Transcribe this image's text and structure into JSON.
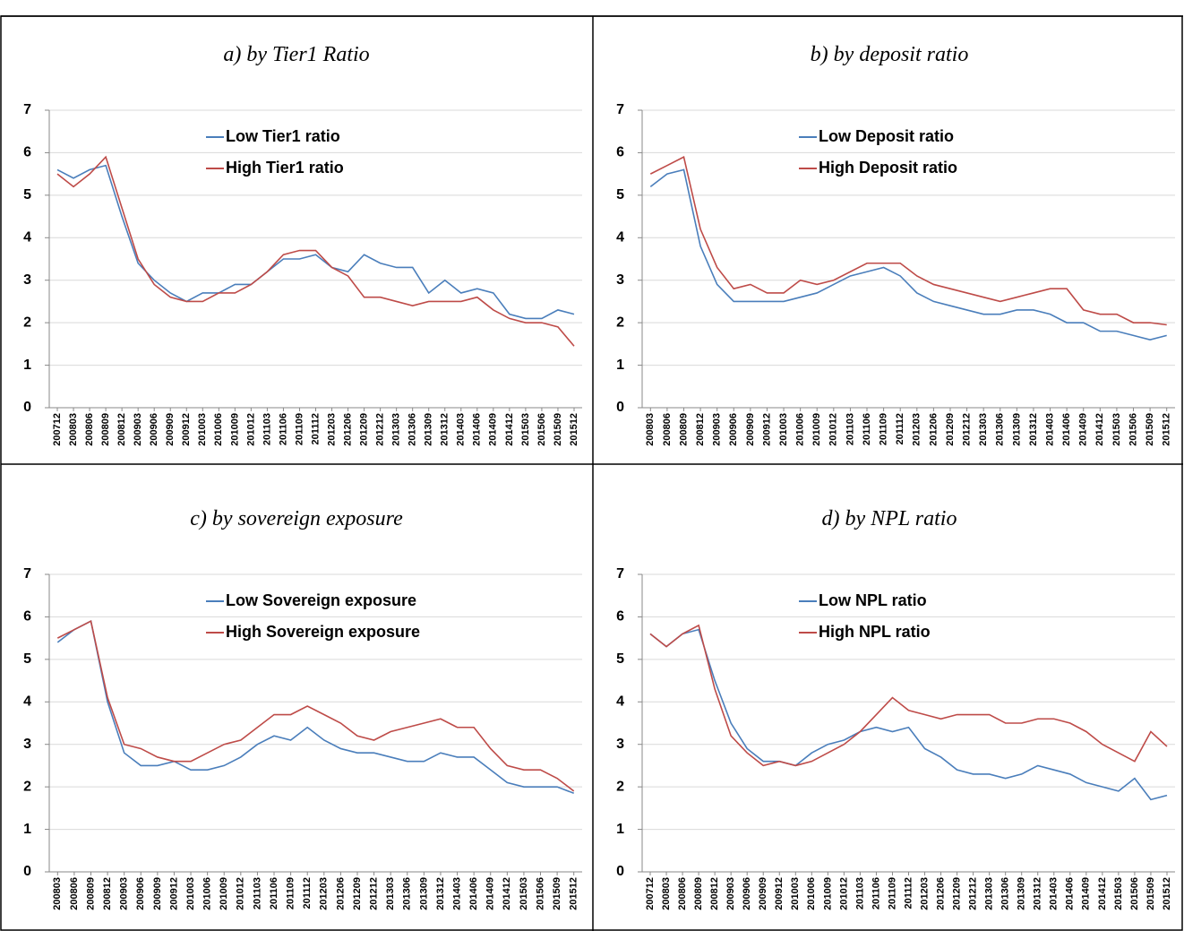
{
  "chart_data": [
    {
      "type": "line",
      "title": "a) by Tier1 Ratio",
      "categories": [
        "200712",
        "200803",
        "200806",
        "200809",
        "200812",
        "200903",
        "200906",
        "200909",
        "200912",
        "201003",
        "201006",
        "201009",
        "201012",
        "201103",
        "201106",
        "201109",
        "201112",
        "201203",
        "201206",
        "201209",
        "201212",
        "201303",
        "201306",
        "201309",
        "201312",
        "201403",
        "201406",
        "201409",
        "201412",
        "201503",
        "201506",
        "201509",
        "201512"
      ],
      "series": [
        {
          "name": "Low Tier1 ratio",
          "color": "#4a7ebb",
          "values": [
            5.6,
            5.4,
            5.6,
            5.7,
            4.5,
            3.4,
            3.0,
            2.7,
            2.5,
            2.7,
            2.7,
            2.9,
            2.9,
            3.2,
            3.5,
            3.5,
            3.6,
            3.3,
            3.2,
            3.6,
            3.4,
            3.3,
            3.3,
            2.7,
            3.0,
            2.7,
            2.8,
            2.7,
            2.2,
            2.1,
            2.1,
            2.3,
            2.2
          ]
        },
        {
          "name": "High Tier1 ratio",
          "color": "#be4b48",
          "values": [
            5.5,
            5.2,
            5.5,
            5.9,
            4.7,
            3.5,
            2.9,
            2.6,
            2.5,
            2.5,
            2.7,
            2.7,
            2.9,
            3.2,
            3.6,
            3.7,
            3.7,
            3.3,
            3.1,
            2.6,
            2.6,
            2.5,
            2.4,
            2.5,
            2.5,
            2.5,
            2.6,
            2.3,
            2.1,
            2.0,
            2.0,
            1.9,
            1.45
          ]
        }
      ],
      "ylim": [
        0,
        7
      ],
      "yticks": [
        0,
        1,
        2,
        3,
        4,
        5,
        6,
        7
      ],
      "grid": true
    },
    {
      "type": "line",
      "title": "b) by deposit ratio",
      "categories": [
        "200803",
        "200806",
        "200809",
        "200812",
        "200903",
        "200906",
        "200909",
        "200912",
        "201003",
        "201006",
        "201009",
        "201012",
        "201103",
        "201106",
        "201109",
        "201112",
        "201203",
        "201206",
        "201209",
        "201212",
        "201303",
        "201306",
        "201309",
        "201312",
        "201403",
        "201406",
        "201409",
        "201412",
        "201503",
        "201506",
        "201509",
        "201512"
      ],
      "series": [
        {
          "name": "Low Deposit ratio",
          "color": "#4a7ebb",
          "values": [
            5.2,
            5.5,
            5.6,
            3.8,
            2.9,
            2.5,
            2.5,
            2.5,
            2.5,
            2.6,
            2.7,
            2.9,
            3.1,
            3.2,
            3.3,
            3.1,
            2.7,
            2.5,
            2.4,
            2.3,
            2.2,
            2.2,
            2.3,
            2.3,
            2.2,
            2.0,
            2.0,
            1.8,
            1.8,
            1.7,
            1.6,
            1.7
          ]
        },
        {
          "name": "High Deposit ratio",
          "color": "#be4b48",
          "values": [
            5.5,
            5.7,
            5.9,
            4.2,
            3.3,
            2.8,
            2.9,
            2.7,
            2.7,
            3.0,
            2.9,
            3.0,
            3.2,
            3.4,
            3.4,
            3.4,
            3.1,
            2.9,
            2.8,
            2.7,
            2.6,
            2.5,
            2.6,
            2.7,
            2.8,
            2.8,
            2.3,
            2.2,
            2.2,
            2.0,
            2.0,
            1.95
          ]
        }
      ],
      "ylim": [
        0,
        7
      ],
      "yticks": [
        0,
        1,
        2,
        3,
        4,
        5,
        6,
        7
      ],
      "grid": true
    },
    {
      "type": "line",
      "title": "c) by sovereign exposure",
      "categories": [
        "200803",
        "200806",
        "200809",
        "200812",
        "200903",
        "200906",
        "200909",
        "200912",
        "201003",
        "201006",
        "201009",
        "201012",
        "201103",
        "201106",
        "201109",
        "201112",
        "201203",
        "201206",
        "201209",
        "201212",
        "201303",
        "201306",
        "201309",
        "201312",
        "201403",
        "201406",
        "201409",
        "201412",
        "201503",
        "201506",
        "201509",
        "201512"
      ],
      "series": [
        {
          "name": "Low Sovereign exposure",
          "color": "#4a7ebb",
          "values": [
            5.4,
            5.7,
            5.9,
            4.0,
            2.8,
            2.5,
            2.5,
            2.6,
            2.4,
            2.4,
            2.5,
            2.7,
            3.0,
            3.2,
            3.1,
            3.4,
            3.1,
            2.9,
            2.8,
            2.8,
            2.7,
            2.6,
            2.6,
            2.8,
            2.7,
            2.7,
            2.4,
            2.1,
            2.0,
            2.0,
            2.0,
            1.85
          ]
        },
        {
          "name": "High Sovereign exposure",
          "color": "#be4b48",
          "values": [
            5.5,
            5.7,
            5.9,
            4.1,
            3.0,
            2.9,
            2.7,
            2.6,
            2.6,
            2.8,
            3.0,
            3.1,
            3.4,
            3.7,
            3.7,
            3.9,
            3.7,
            3.5,
            3.2,
            3.1,
            3.3,
            3.4,
            3.5,
            3.6,
            3.4,
            3.4,
            2.9,
            2.5,
            2.4,
            2.4,
            2.2,
            1.9
          ]
        }
      ],
      "ylim": [
        0,
        7
      ],
      "yticks": [
        0,
        1,
        2,
        3,
        4,
        5,
        6,
        7
      ],
      "grid": true
    },
    {
      "type": "line",
      "title": "d) by NPL ratio",
      "categories": [
        "200712",
        "200803",
        "200806",
        "200809",
        "200812",
        "200903",
        "200906",
        "200909",
        "200912",
        "201003",
        "201006",
        "201009",
        "201012",
        "201103",
        "201106",
        "201109",
        "201112",
        "201203",
        "201206",
        "201209",
        "201212",
        "201303",
        "201306",
        "201309",
        "201312",
        "201403",
        "201406",
        "201409",
        "201412",
        "201503",
        "201506",
        "201509",
        "201512"
      ],
      "series": [
        {
          "name": "Low NPL ratio",
          "color": "#4a7ebb",
          "values": [
            5.6,
            5.3,
            5.6,
            5.7,
            4.5,
            3.5,
            2.9,
            2.6,
            2.6,
            2.5,
            2.8,
            3.0,
            3.1,
            3.3,
            3.4,
            3.3,
            3.4,
            2.9,
            2.7,
            2.4,
            2.3,
            2.3,
            2.2,
            2.3,
            2.5,
            2.4,
            2.3,
            2.1,
            2.0,
            1.9,
            2.2,
            1.7,
            1.8
          ]
        },
        {
          "name": "High NPL ratio",
          "color": "#be4b48",
          "values": [
            5.6,
            5.3,
            5.6,
            5.8,
            4.3,
            3.2,
            2.8,
            2.5,
            2.6,
            2.5,
            2.6,
            2.8,
            3.0,
            3.3,
            3.7,
            4.1,
            3.8,
            3.7,
            3.6,
            3.7,
            3.7,
            3.7,
            3.5,
            3.5,
            3.6,
            3.6,
            3.5,
            3.3,
            3.0,
            2.8,
            2.6,
            3.3,
            2.95
          ]
        }
      ],
      "ylim": [
        0,
        7
      ],
      "yticks": [
        0,
        1,
        2,
        3,
        4,
        5,
        6,
        7
      ],
      "grid": true
    }
  ]
}
